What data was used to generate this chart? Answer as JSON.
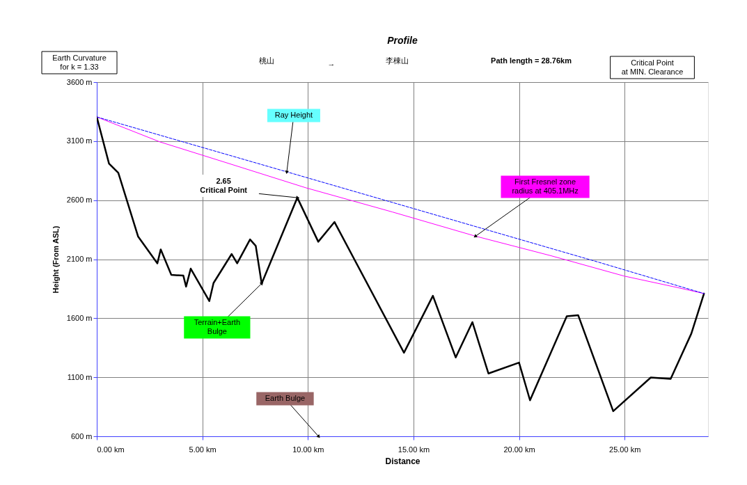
{
  "chart_data": {
    "type": "line",
    "title": "Profile",
    "xlabel": "Distance",
    "ylabel": "Height (From ASL)",
    "xlim": [
      0,
      28.95
    ],
    "ylim": [
      600,
      3600
    ],
    "xticks": [
      {
        "value": 0,
        "label": "0.00 km"
      },
      {
        "value": 5,
        "label": "5.00 km"
      },
      {
        "value": 10,
        "label": "10.00 km"
      },
      {
        "value": 15,
        "label": "15.00 km"
      },
      {
        "value": 20,
        "label": "20.00 km"
      },
      {
        "value": 25,
        "label": "25.00 km"
      }
    ],
    "yticks": [
      {
        "value": 600,
        "label": "600 m"
      },
      {
        "value": 1100,
        "label": "1100 m"
      },
      {
        "value": 1600,
        "label": "1600 m"
      },
      {
        "value": 2100,
        "label": "2100 m"
      },
      {
        "value": 2600,
        "label": "2600 m"
      },
      {
        "value": 3100,
        "label": "3100 m"
      },
      {
        "value": 3600,
        "label": "3600 m"
      }
    ],
    "grid": true,
    "series": [
      {
        "name": "Terrain+Earth Bulge",
        "color": "#000000",
        "x": [
          0,
          0.58,
          1.02,
          1.96,
          2.87,
          3.03,
          3.53,
          4.1,
          4.23,
          4.45,
          5.33,
          5.53,
          6.39,
          6.65,
          7.26,
          7.53,
          7.81,
          9.5,
          10.49,
          11.26,
          14.55,
          15.92,
          17.0,
          17.79,
          18.55,
          20.0,
          20.52,
          22.26,
          22.8,
          24.46,
          26.24,
          27.18,
          28.16,
          28.76
        ],
        "values": [
          3305,
          2910,
          2832,
          2291,
          2065,
          2183,
          1967,
          1961,
          1868,
          2020,
          1745,
          1898,
          2144,
          2065,
          2267,
          2213,
          1894,
          2621,
          2248,
          2415,
          1308,
          1790,
          1268,
          1567,
          1132,
          1224,
          905,
          1617,
          1626,
          813,
          1098,
          1086,
          1470,
          1809
        ]
      },
      {
        "name": "Ray Height",
        "color": "#0000ff",
        "line_style": "dashed",
        "x": [
          0,
          9.0,
          23.74,
          28.76
        ],
        "values": [
          3305,
          2840,
          2076,
          1809
        ]
      },
      {
        "name": "First Fresnel zone radius at 405.1MHz",
        "color": "#ff00ff",
        "x": [
          0,
          3.0,
          6.0,
          9.92,
          14.0,
          17.94,
          21.5,
          24.98,
          27.5,
          28.76
        ],
        "values": [
          3305,
          3093,
          2925,
          2704,
          2500,
          2295,
          2130,
          1957,
          1860,
          1809
        ]
      }
    ],
    "annotations": [
      "Earth Curvature\nfor k = 1.33",
      "桃山",
      "→",
      "李棟山",
      "Path length = 28.76km",
      "Critical Point\nat MIN. Clearance",
      {
        "text": "2.65\nCritical Point",
        "x": 9.5,
        "y": 2621
      },
      {
        "text": "Earth Bulge",
        "x": 10.5,
        "y": 600
      }
    ]
  }
}
